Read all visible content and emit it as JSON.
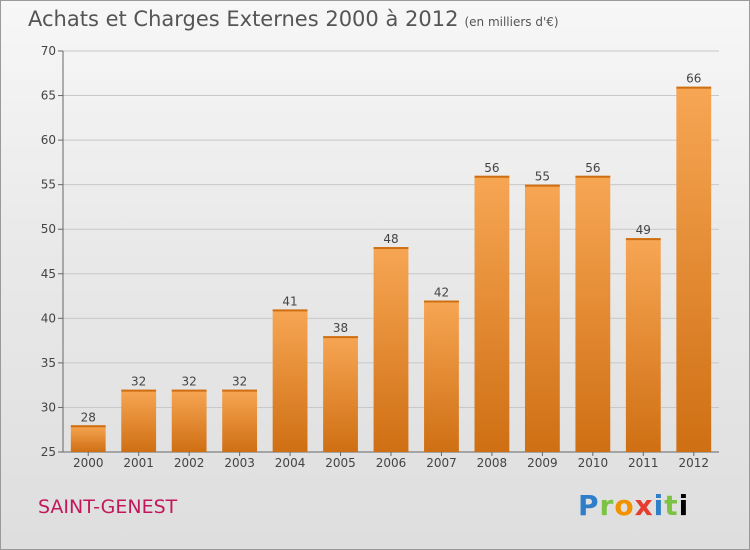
{
  "title": "Achats et Charges Externes 2000 à 2012",
  "subtitle": "(en milliers d'€)",
  "location": "SAINT-GENEST",
  "brand": "Proxiti",
  "colors": {
    "bar": "#f08a24",
    "bar_light": "#f7a654",
    "bar_dark": "#cf6f13"
  },
  "chart_data": {
    "type": "bar",
    "categories": [
      "2000",
      "2001",
      "2002",
      "2003",
      "2004",
      "2005",
      "2006",
      "2007",
      "2008",
      "2009",
      "2010",
      "2011",
      "2012"
    ],
    "values": [
      28,
      32,
      32,
      32,
      41,
      38,
      48,
      42,
      56,
      55,
      56,
      49,
      66
    ],
    "ylim": [
      25,
      70
    ],
    "yticks": [
      25,
      30,
      35,
      40,
      45,
      50,
      55,
      60,
      65,
      70
    ],
    "grid": true,
    "title": "Achats et Charges Externes 2000 à 2012",
    "xlabel": "",
    "ylabel": ""
  }
}
